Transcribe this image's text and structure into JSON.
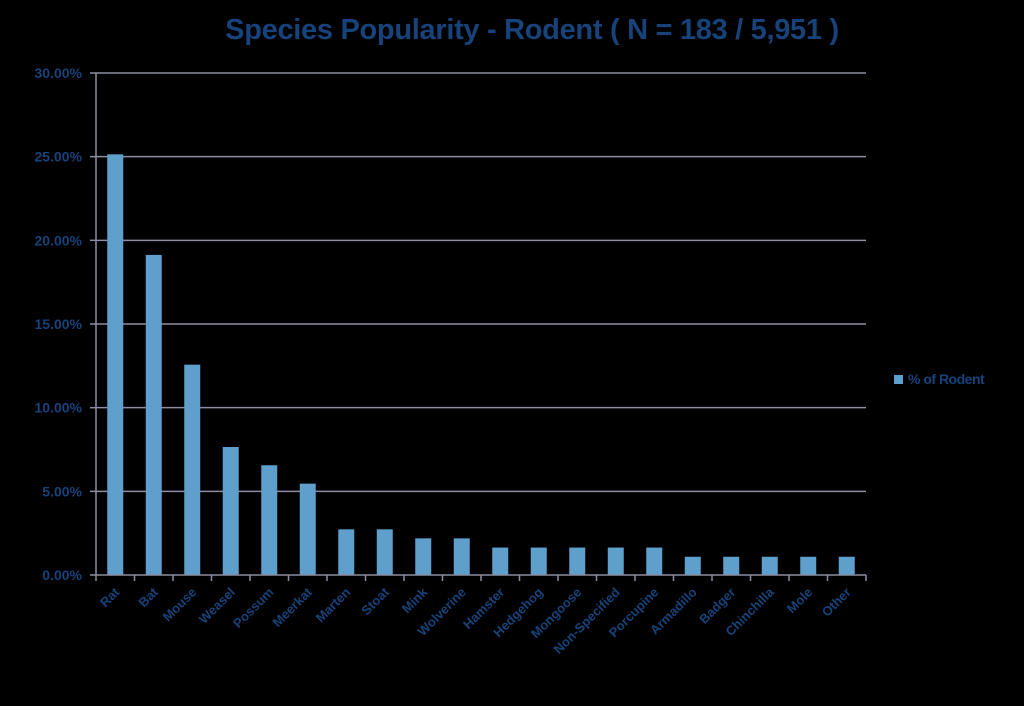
{
  "chart_data": {
    "type": "bar",
    "title": "Species Popularity - Rodent ( N = 183 / 5,951 )",
    "xlabel": "",
    "ylabel": "",
    "categories": [
      "Rat",
      "Bat",
      "Mouse",
      "Weasel",
      "Possum",
      "Meerkat",
      "Marten",
      "Stoat",
      "Mink",
      "Wolverine",
      "Hamster",
      "Hedgehog",
      "Mongoose",
      "Non-Specified",
      "Porcupine",
      "Armadillo",
      "Badger",
      "Chinchilla",
      "Mole",
      "Other"
    ],
    "series": [
      {
        "name": "% of Rodent",
        "color": "#5f9fcc",
        "values": [
          25.14,
          19.13,
          12.57,
          7.65,
          6.56,
          5.46,
          2.73,
          2.73,
          2.19,
          2.19,
          1.64,
          1.64,
          1.64,
          1.64,
          1.64,
          1.09,
          1.09,
          1.09,
          1.09,
          1.09
        ]
      }
    ],
    "ylim": [
      0,
      30
    ],
    "yticks": [
      0,
      5,
      10,
      15,
      20,
      25,
      30
    ],
    "ytick_labels": [
      "0.00%",
      "5.00%",
      "10.00%",
      "15.00%",
      "20.00%",
      "25.00%",
      "30.00%"
    ],
    "grid": true,
    "legend_position": "right"
  },
  "colors": {
    "background": "#000000",
    "text": "#17427a",
    "grid": "#8a8ea0",
    "bar": "#5f9fcc"
  }
}
